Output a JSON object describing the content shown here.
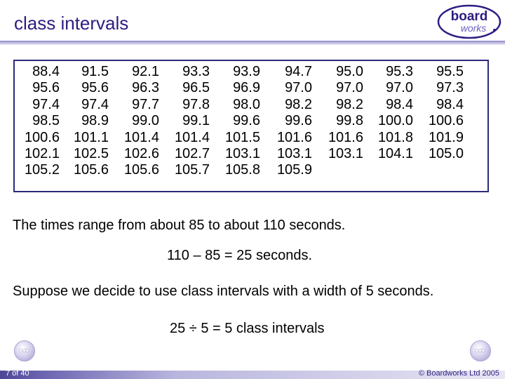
{
  "header": {
    "title": "class intervals",
    "logo": {
      "line1": "board",
      "line2": "works"
    }
  },
  "data_table": {
    "columns": [
      [
        "88.4",
        "95.6",
        "97.4",
        "98.5",
        "100.6",
        "102.1",
        "105.2"
      ],
      [
        "91.5",
        "95.6",
        "97.4",
        "98.9",
        "101.1",
        "102.5",
        "105.6"
      ],
      [
        "92.1",
        "96.3",
        "97.7",
        "99.0",
        "101.4",
        "102.6",
        "105.6"
      ],
      [
        "93.3",
        "96.5",
        "97.8",
        "99.1",
        "101.4",
        "102.7",
        "105.7"
      ],
      [
        "93.9",
        "96.9",
        "98.0",
        "99.6",
        "101.5",
        "103.1",
        "105.8"
      ],
      [
        "94.7",
        "97.0",
        "98.2",
        "99.6",
        "101.6",
        "103.1",
        "105.9"
      ],
      [
        "95.0",
        "97.0",
        "98.2",
        "99.8",
        "101.6",
        "103.1"
      ],
      [
        "95.3",
        "97.0",
        "98.4",
        "100.0",
        "101.8",
        "104.1"
      ],
      [
        "95.5",
        "97.3",
        "98.4",
        "100.6",
        "101.9",
        "105.0"
      ]
    ]
  },
  "text": {
    "range": "The times range from about 85 to about 110 seconds.",
    "difference": "110 – 85 = 25 seconds.",
    "suppose": "Suppose we decide to use class intervals with a width of 5 seconds.",
    "division": "25 ÷ 5 = 5 class intervals"
  },
  "footer": {
    "slide_number": "7 of 40",
    "copyright": "© Boardworks Ltd 2005"
  },
  "nav": {
    "prev_glyph": "•••",
    "next_glyph": "•••"
  },
  "colors": {
    "title": "#2c1d82",
    "border": "#2c2a7a"
  }
}
